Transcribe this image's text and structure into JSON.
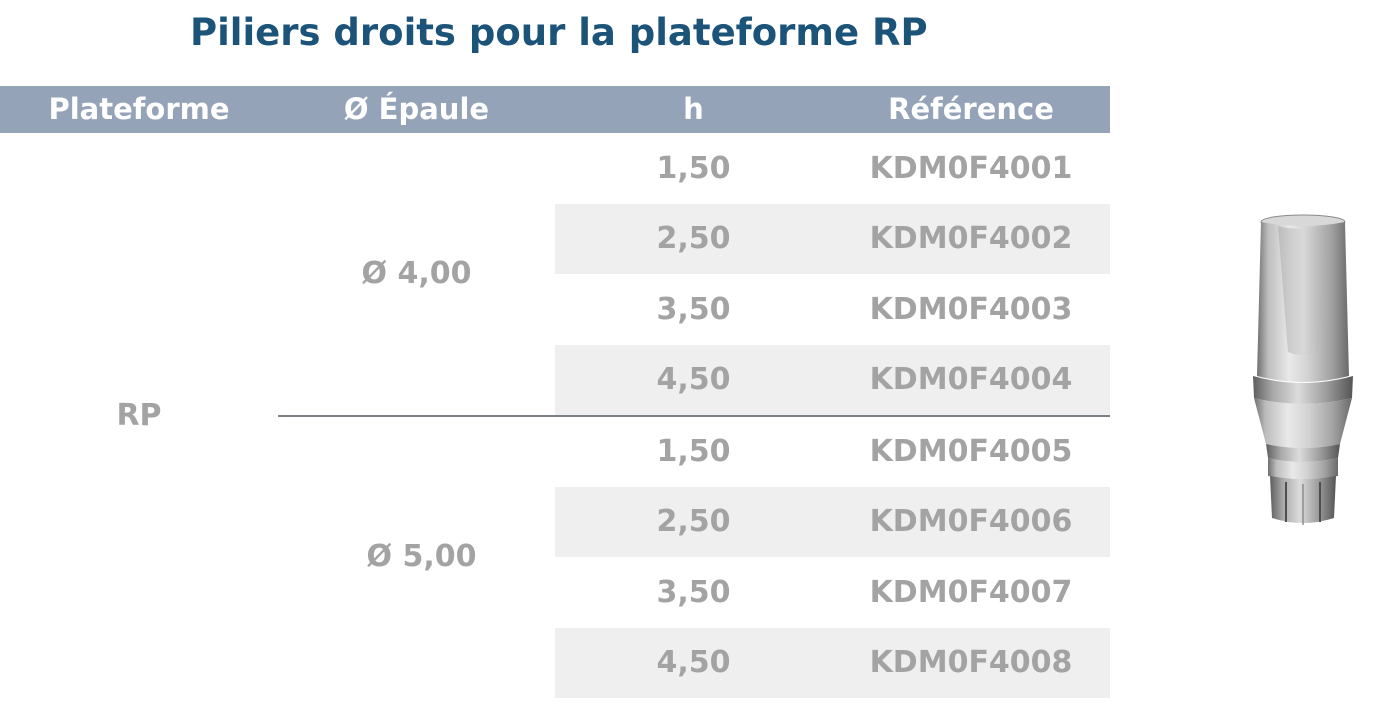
{
  "title": "Piliers droits pour la plateforme RP",
  "table": {
    "headers": {
      "plateforme": "Plateforme",
      "epaule": "Ø Épaule",
      "h": "h",
      "reference": "Référence"
    },
    "plateforme": "RP",
    "groups": [
      {
        "epaule": "Ø 4,00",
        "rows": [
          {
            "h": "1,50",
            "reference": "KDM0F4001"
          },
          {
            "h": "2,50",
            "reference": "KDM0F4002"
          },
          {
            "h": "3,50",
            "reference": "KDM0F4003"
          },
          {
            "h": "4,50",
            "reference": "KDM0F4004"
          }
        ]
      },
      {
        "epaule": "Ø 5,00",
        "rows": [
          {
            "h": "1,50",
            "reference": "KDM0F4005"
          },
          {
            "h": "2,50",
            "reference": "KDM0F4006"
          },
          {
            "h": "3,50",
            "reference": "KDM0F4007"
          },
          {
            "h": "4,50",
            "reference": "KDM0F4008"
          }
        ]
      }
    ]
  },
  "colors": {
    "title": "#1b5379",
    "header_bg": "#94a3b8",
    "header_text": "#ffffff",
    "cell_text": "#a3a3a3",
    "row_shade": "#efefef",
    "divider": "#7b7f86"
  },
  "product_image_icon": "straight-abutment-icon"
}
